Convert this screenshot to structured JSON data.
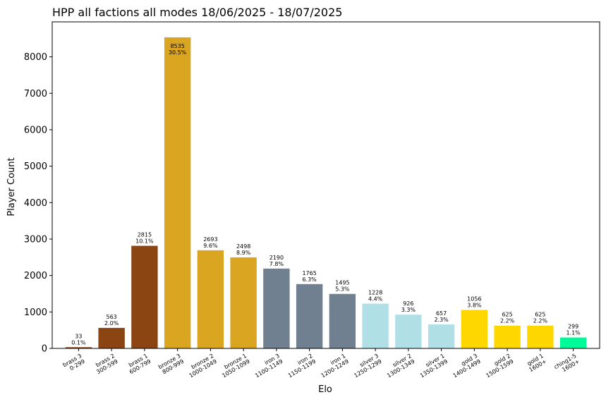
{
  "chart_data": {
    "type": "bar",
    "title": "HPP all factions all modes 18/06/2025 - 18/07/2025",
    "xlabel": "Elo",
    "ylabel": "Player Count",
    "ylim": [
      0,
      8960
    ],
    "yticks": [
      0,
      1000,
      2000,
      3000,
      4000,
      5000,
      6000,
      7000,
      8000
    ],
    "grid": false,
    "categories": [
      [
        "brass 3",
        "0-299"
      ],
      [
        "brass 2",
        "300-599"
      ],
      [
        "brass 1",
        "600-799"
      ],
      [
        "bronze 3",
        "800-999"
      ],
      [
        "bronze 2",
        "1000-1049"
      ],
      [
        "bronze 1",
        "1050-1099"
      ],
      [
        "iron 3",
        "1100-1149"
      ],
      [
        "iron 2",
        "1150-1199"
      ],
      [
        "iron 1",
        "1200-1249"
      ],
      [
        "silver 3",
        "1250-1299"
      ],
      [
        "silver 2",
        "1300-1349"
      ],
      [
        "silver 1",
        "1350-1399"
      ],
      [
        "gold 3",
        "1400-1499"
      ],
      [
        "gold 2",
        "1500-1599"
      ],
      [
        "gold 1",
        "1600+"
      ],
      [
        "ching1-5",
        "1600+"
      ]
    ],
    "values": [
      33,
      563,
      2815,
      8535,
      2693,
      2498,
      2190,
      1765,
      1495,
      1228,
      926,
      657,
      1056,
      625,
      625,
      299
    ],
    "percents": [
      "0.1%",
      "2.0%",
      "10.1%",
      "30.5%",
      "9.6%",
      "8.9%",
      "7.8%",
      "6.3%",
      "5.3%",
      "4.4%",
      "3.3%",
      "2.3%",
      "3.8%",
      "2.2%",
      "2.2%",
      "1.1%"
    ],
    "colors": [
      "#8b4513",
      "#8b4513",
      "#8b4513",
      "#daa520",
      "#daa520",
      "#daa520",
      "#708090",
      "#708090",
      "#708090",
      "#b0e0e6",
      "#b0e0e6",
      "#b0e0e6",
      "#ffd700",
      "#ffd700",
      "#ffd700",
      "#00fa9a"
    ]
  }
}
